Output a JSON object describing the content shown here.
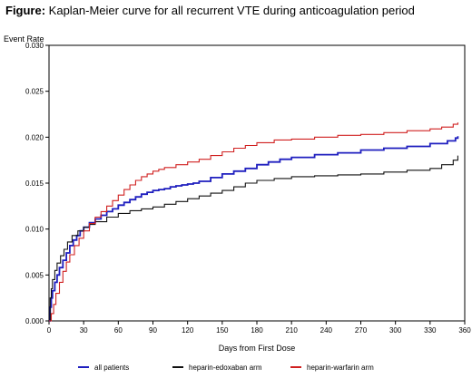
{
  "figure": {
    "prefix": "Figure:",
    "caption": " Kaplan-Meier curve for all recurrent VTE during anticoagulation period"
  },
  "chart_data": {
    "type": "line",
    "step": true,
    "xlabel": "Days from First Dose",
    "ylabel": "Event Rate",
    "xlim": [
      0,
      360
    ],
    "ylim": [
      0,
      0.03
    ],
    "xticks": [
      0,
      30,
      60,
      90,
      120,
      150,
      180,
      210,
      240,
      270,
      300,
      330,
      360
    ],
    "yticks": [
      "0.000",
      "0.005",
      "0.010",
      "0.015",
      "0.020",
      "0.025",
      "0.030"
    ],
    "grid": false,
    "legend_position": "bottom",
    "series": [
      {
        "name": "all patients",
        "color": "#1f1fbf",
        "x": [
          0,
          1,
          2,
          3,
          5,
          7,
          9,
          12,
          15,
          18,
          21,
          24,
          27,
          30,
          35,
          40,
          45,
          50,
          55,
          60,
          65,
          70,
          75,
          80,
          85,
          90,
          95,
          100,
          105,
          110,
          115,
          120,
          125,
          130,
          140,
          150,
          160,
          170,
          180,
          190,
          200,
          210,
          230,
          250,
          270,
          290,
          310,
          330,
          345,
          352,
          354
        ],
        "y": [
          0,
          0.0015,
          0.0025,
          0.0033,
          0.0042,
          0.005,
          0.0058,
          0.0066,
          0.0074,
          0.0082,
          0.0088,
          0.0093,
          0.0098,
          0.0102,
          0.0107,
          0.0111,
          0.0115,
          0.0119,
          0.0122,
          0.0126,
          0.0129,
          0.0132,
          0.0135,
          0.0138,
          0.014,
          0.0142,
          0.0143,
          0.0144,
          0.0146,
          0.0147,
          0.0148,
          0.0149,
          0.015,
          0.0152,
          0.0156,
          0.016,
          0.0163,
          0.0166,
          0.017,
          0.0173,
          0.0176,
          0.0178,
          0.0181,
          0.0183,
          0.0186,
          0.0188,
          0.019,
          0.0193,
          0.0196,
          0.0199,
          0.0201
        ]
      },
      {
        "name": "heparin-edoxaban arm",
        "color": "#111111",
        "x": [
          0,
          1,
          2,
          3,
          5,
          7,
          10,
          13,
          16,
          20,
          25,
          30,
          35,
          40,
          50,
          60,
          70,
          80,
          90,
          100,
          110,
          120,
          130,
          140,
          150,
          160,
          170,
          180,
          195,
          210,
          230,
          250,
          270,
          290,
          310,
          330,
          340,
          350,
          354
        ],
        "y": [
          0,
          0.0025,
          0.0035,
          0.0045,
          0.0055,
          0.0063,
          0.0071,
          0.0078,
          0.0086,
          0.0093,
          0.0098,
          0.0102,
          0.0105,
          0.0108,
          0.0113,
          0.0117,
          0.012,
          0.0122,
          0.0124,
          0.0127,
          0.013,
          0.0133,
          0.0136,
          0.0139,
          0.0142,
          0.0146,
          0.015,
          0.0153,
          0.0155,
          0.0157,
          0.0158,
          0.0159,
          0.016,
          0.0162,
          0.0164,
          0.0166,
          0.017,
          0.0175,
          0.018
        ]
      },
      {
        "name": "heparin-warfarin arm",
        "color": "#d02020",
        "x": [
          0,
          2,
          4,
          6,
          9,
          12,
          15,
          18,
          22,
          26,
          30,
          35,
          40,
          45,
          50,
          55,
          60,
          65,
          70,
          75,
          80,
          85,
          90,
          95,
          100,
          110,
          120,
          130,
          140,
          150,
          160,
          170,
          180,
          195,
          210,
          230,
          250,
          270,
          290,
          310,
          330,
          340,
          350,
          354
        ],
        "y": [
          0,
          0.0008,
          0.0018,
          0.003,
          0.0042,
          0.0054,
          0.0064,
          0.0072,
          0.0082,
          0.009,
          0.0098,
          0.0106,
          0.0113,
          0.0119,
          0.0125,
          0.0131,
          0.0137,
          0.0143,
          0.0148,
          0.0153,
          0.0157,
          0.016,
          0.0163,
          0.0165,
          0.0167,
          0.017,
          0.0173,
          0.0176,
          0.018,
          0.0184,
          0.0188,
          0.0191,
          0.0194,
          0.0197,
          0.0198,
          0.02,
          0.0202,
          0.0203,
          0.0205,
          0.0207,
          0.0209,
          0.0211,
          0.0214,
          0.0216
        ]
      }
    ]
  }
}
